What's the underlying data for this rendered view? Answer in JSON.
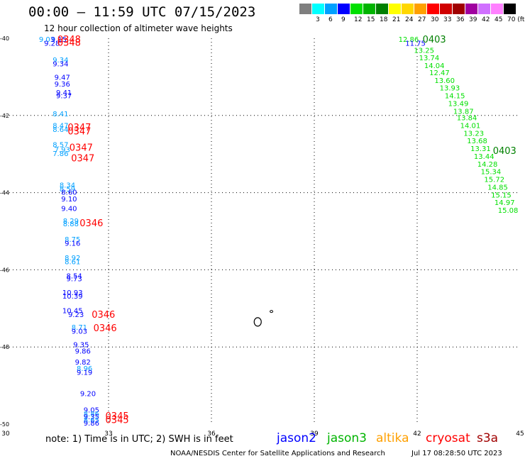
{
  "header": {
    "title": "00:00 – 11:59 UTC 07/15/2023",
    "subtitle": "12 hour collection of altimeter wave heights"
  },
  "legend": {
    "bins": [
      {
        "color": "#7f7f7f",
        "label": ""
      },
      {
        "color": "#00ffff",
        "label": "3"
      },
      {
        "color": "#00a0ff",
        "label": "6"
      },
      {
        "color": "#0000ff",
        "label": "9"
      },
      {
        "color": "#00e000",
        "label": "12"
      },
      {
        "color": "#00b400",
        "label": "15"
      },
      {
        "color": "#008000",
        "label": "18"
      },
      {
        "color": "#ffff00",
        "label": "21"
      },
      {
        "color": "#ffd700",
        "label": "24"
      },
      {
        "color": "#ffa000",
        "label": "27"
      },
      {
        "color": "#ff0000",
        "label": "30"
      },
      {
        "color": "#d00000",
        "label": "33"
      },
      {
        "color": "#a00000",
        "label": "36"
      },
      {
        "color": "#a000a0",
        "label": "39"
      },
      {
        "color": "#d070ff",
        "label": "42"
      },
      {
        "color": "#ff80ff",
        "label": "45"
      },
      {
        "color": "#000000",
        "label": "70 (ft)"
      }
    ]
  },
  "chart_data": {
    "type": "scatter",
    "xlim": [
      30,
      45
    ],
    "ylim": [
      -50,
      -40
    ],
    "x_ticks": [
      "30",
      "33",
      "36",
      "39",
      "42",
      "45"
    ],
    "y_ticks": [
      "-40",
      "-42",
      "-44",
      "-46",
      "-48",
      "-50"
    ],
    "grid": true,
    "palette": {
      "ltblue": "#00a0ff",
      "blue": "#0000ff",
      "green": "#00e000",
      "red": "#ff0000",
      "dkgreen": "#008000"
    },
    "points": [
      {
        "lon": 31.2,
        "lat": -40.02,
        "text": "9.03",
        "c": "ltblue"
      },
      {
        "lon": 31.55,
        "lat": -40.02,
        "text": "9.15",
        "c": "blue"
      },
      {
        "lon": 31.35,
        "lat": -40.12,
        "text": "9.28",
        "c": "blue"
      },
      {
        "lon": 31.6,
        "lat": -40.55,
        "text": "9.34",
        "c": "ltblue"
      },
      {
        "lon": 31.6,
        "lat": -40.65,
        "text": "9.34",
        "c": "blue"
      },
      {
        "lon": 31.65,
        "lat": -41.0,
        "text": "9.47",
        "c": "blue"
      },
      {
        "lon": 31.65,
        "lat": -41.18,
        "text": "9.36",
        "c": "blue"
      },
      {
        "lon": 31.7,
        "lat": -41.4,
        "text": "9.41",
        "c": "blue"
      },
      {
        "lon": 31.7,
        "lat": -41.48,
        "text": "9.37",
        "c": "blue"
      },
      {
        "lon": 31.6,
        "lat": -41.95,
        "text": "8.41",
        "c": "ltblue"
      },
      {
        "lon": 31.6,
        "lat": -42.25,
        "text": "8.47",
        "c": "ltblue"
      },
      {
        "lon": 31.6,
        "lat": -42.35,
        "text": "8.64",
        "c": "ltblue"
      },
      {
        "lon": 31.6,
        "lat": -42.75,
        "text": "8.57",
        "c": "ltblue"
      },
      {
        "lon": 31.65,
        "lat": -42.88,
        "text": "7.93",
        "c": "ltblue"
      },
      {
        "lon": 31.6,
        "lat": -42.98,
        "text": "7.86",
        "c": "ltblue"
      },
      {
        "lon": 31.8,
        "lat": -43.8,
        "text": "8.34",
        "c": "ltblue"
      },
      {
        "lon": 31.8,
        "lat": -43.9,
        "text": "8.59",
        "c": "ltblue"
      },
      {
        "lon": 31.85,
        "lat": -43.98,
        "text": "8.60",
        "c": "blue"
      },
      {
        "lon": 31.85,
        "lat": -44.15,
        "text": "9.10",
        "c": "blue"
      },
      {
        "lon": 31.85,
        "lat": -44.4,
        "text": "9.40",
        "c": "blue"
      },
      {
        "lon": 31.9,
        "lat": -44.72,
        "text": "8.29",
        "c": "ltblue"
      },
      {
        "lon": 31.9,
        "lat": -44.8,
        "text": "8.88",
        "c": "ltblue"
      },
      {
        "lon": 31.95,
        "lat": -45.2,
        "text": "8.75",
        "c": "ltblue"
      },
      {
        "lon": 31.95,
        "lat": -45.3,
        "text": "9.16",
        "c": "blue"
      },
      {
        "lon": 31.95,
        "lat": -45.68,
        "text": "8.92",
        "c": "ltblue"
      },
      {
        "lon": 31.95,
        "lat": -45.78,
        "text": "8.61",
        "c": "ltblue"
      },
      {
        "lon": 32.0,
        "lat": -46.15,
        "text": "8.54",
        "c": "blue"
      },
      {
        "lon": 32.0,
        "lat": -46.22,
        "text": "9.73",
        "c": "blue"
      },
      {
        "lon": 31.95,
        "lat": -46.58,
        "text": "10.93",
        "c": "blue"
      },
      {
        "lon": 31.95,
        "lat": -46.67,
        "text": "10.39",
        "c": "blue"
      },
      {
        "lon": 31.95,
        "lat": -47.05,
        "text": "10.45",
        "c": "blue"
      },
      {
        "lon": 32.05,
        "lat": -47.15,
        "text": "9.23",
        "c": "blue"
      },
      {
        "lon": 32.15,
        "lat": -47.48,
        "text": "8.71",
        "c": "ltblue"
      },
      {
        "lon": 32.15,
        "lat": -47.58,
        "text": "9.03",
        "c": "blue"
      },
      {
        "lon": 32.2,
        "lat": -47.93,
        "text": "9.35",
        "c": "blue"
      },
      {
        "lon": 32.25,
        "lat": -48.1,
        "text": "9.86",
        "c": "blue"
      },
      {
        "lon": 32.25,
        "lat": -48.38,
        "text": "9.82",
        "c": "blue"
      },
      {
        "lon": 32.3,
        "lat": -48.55,
        "text": "8.96",
        "c": "ltblue"
      },
      {
        "lon": 32.3,
        "lat": -48.65,
        "text": "9.19",
        "c": "blue"
      },
      {
        "lon": 32.4,
        "lat": -49.2,
        "text": "9.20",
        "c": "blue"
      },
      {
        "lon": 32.5,
        "lat": -49.62,
        "text": "9.05",
        "c": "blue"
      },
      {
        "lon": 32.5,
        "lat": -49.72,
        "text": "8.86",
        "c": "ltblue"
      },
      {
        "lon": 32.5,
        "lat": -49.8,
        "text": "9.35",
        "c": "blue"
      },
      {
        "lon": 32.5,
        "lat": -49.88,
        "text": "8.65",
        "c": "ltblue"
      },
      {
        "lon": 32.5,
        "lat": -49.96,
        "text": "9.86",
        "c": "blue"
      },
      {
        "lon": 41.75,
        "lat": -40.02,
        "text": "12.86",
        "c": "green"
      },
      {
        "lon": 41.95,
        "lat": -40.12,
        "text": "11.75",
        "c": "blue"
      },
      {
        "lon": 42.2,
        "lat": -40.3,
        "text": "13.25",
        "c": "green"
      },
      {
        "lon": 42.35,
        "lat": -40.5,
        "text": "13.74",
        "c": "green"
      },
      {
        "lon": 42.5,
        "lat": -40.7,
        "text": "14.04",
        "c": "green"
      },
      {
        "lon": 42.65,
        "lat": -40.88,
        "text": "12.47",
        "c": "green"
      },
      {
        "lon": 42.8,
        "lat": -41.08,
        "text": "13.60",
        "c": "green"
      },
      {
        "lon": 42.95,
        "lat": -41.28,
        "text": "13.93",
        "c": "green"
      },
      {
        "lon": 43.1,
        "lat": -41.48,
        "text": "14.15",
        "c": "green"
      },
      {
        "lon": 43.2,
        "lat": -41.68,
        "text": "13.49",
        "c": "green"
      },
      {
        "lon": 43.35,
        "lat": -41.88,
        "text": "13.87",
        "c": "green"
      },
      {
        "lon": 43.45,
        "lat": -42.05,
        "text": "13.84",
        "c": "green"
      },
      {
        "lon": 43.55,
        "lat": -42.25,
        "text": "14.01",
        "c": "green"
      },
      {
        "lon": 43.65,
        "lat": -42.45,
        "text": "13.23",
        "c": "green"
      },
      {
        "lon": 43.75,
        "lat": -42.65,
        "text": "13.68",
        "c": "green"
      },
      {
        "lon": 43.85,
        "lat": -42.85,
        "text": "13.31",
        "c": "green"
      },
      {
        "lon": 43.95,
        "lat": -43.05,
        "text": "13.44",
        "c": "green"
      },
      {
        "lon": 44.05,
        "lat": -43.25,
        "text": "14.28",
        "c": "green"
      },
      {
        "lon": 44.15,
        "lat": -43.45,
        "text": "15.34",
        "c": "green"
      },
      {
        "lon": 44.25,
        "lat": -43.65,
        "text": "15.72",
        "c": "green"
      },
      {
        "lon": 44.35,
        "lat": -43.85,
        "text": "14.85",
        "c": "green"
      },
      {
        "lon": 44.45,
        "lat": -44.05,
        "text": "15.15",
        "c": "green"
      },
      {
        "lon": 44.55,
        "lat": -44.25,
        "text": "14.97",
        "c": "green"
      },
      {
        "lon": 44.65,
        "lat": -44.45,
        "text": "15.08",
        "c": "green"
      }
    ],
    "time_labels": [
      {
        "lon": 31.85,
        "lat": -40.02,
        "text": "0348",
        "c": "red"
      },
      {
        "lon": 31.85,
        "lat": -40.1,
        "text": "0348",
        "c": "red"
      },
      {
        "lon": 32.15,
        "lat": -42.3,
        "text": "0347",
        "c": "red"
      },
      {
        "lon": 32.15,
        "lat": -42.4,
        "text": "0347",
        "c": "red"
      },
      {
        "lon": 32.2,
        "lat": -42.82,
        "text": "0347",
        "c": "red"
      },
      {
        "lon": 32.25,
        "lat": -43.1,
        "text": "0347",
        "c": "red"
      },
      {
        "lon": 32.5,
        "lat": -44.78,
        "text": "0346",
        "c": "red"
      },
      {
        "lon": 32.85,
        "lat": -47.15,
        "text": "0346",
        "c": "red"
      },
      {
        "lon": 32.9,
        "lat": -47.5,
        "text": "0346",
        "c": "red"
      },
      {
        "lon": 33.25,
        "lat": -49.78,
        "text": "0345",
        "c": "red"
      },
      {
        "lon": 33.25,
        "lat": -49.88,
        "text": "0345",
        "c": "red"
      },
      {
        "lon": 42.5,
        "lat": -40.02,
        "text": "0403",
        "c": "dkgreen"
      },
      {
        "lon": 44.55,
        "lat": -42.9,
        "text": "0403",
        "c": "dkgreen"
      }
    ]
  },
  "footer": {
    "note": "note:  1) Time is in UTC;  2) SWH is in feet",
    "satellites": [
      {
        "name": "jason2",
        "color": "#0000ff"
      },
      {
        "name": "jason3",
        "color": "#00b400"
      },
      {
        "name": "altika",
        "color": "#ffa000"
      },
      {
        "name": "cryosat",
        "color": "#ff0000"
      },
      {
        "name": "s3a",
        "color": "#a00000"
      }
    ],
    "source": "NOAA/NESDIS Center for Satellite Applications and Research",
    "timestamp": "Jul 17 08:28:50 UTC 2023"
  }
}
